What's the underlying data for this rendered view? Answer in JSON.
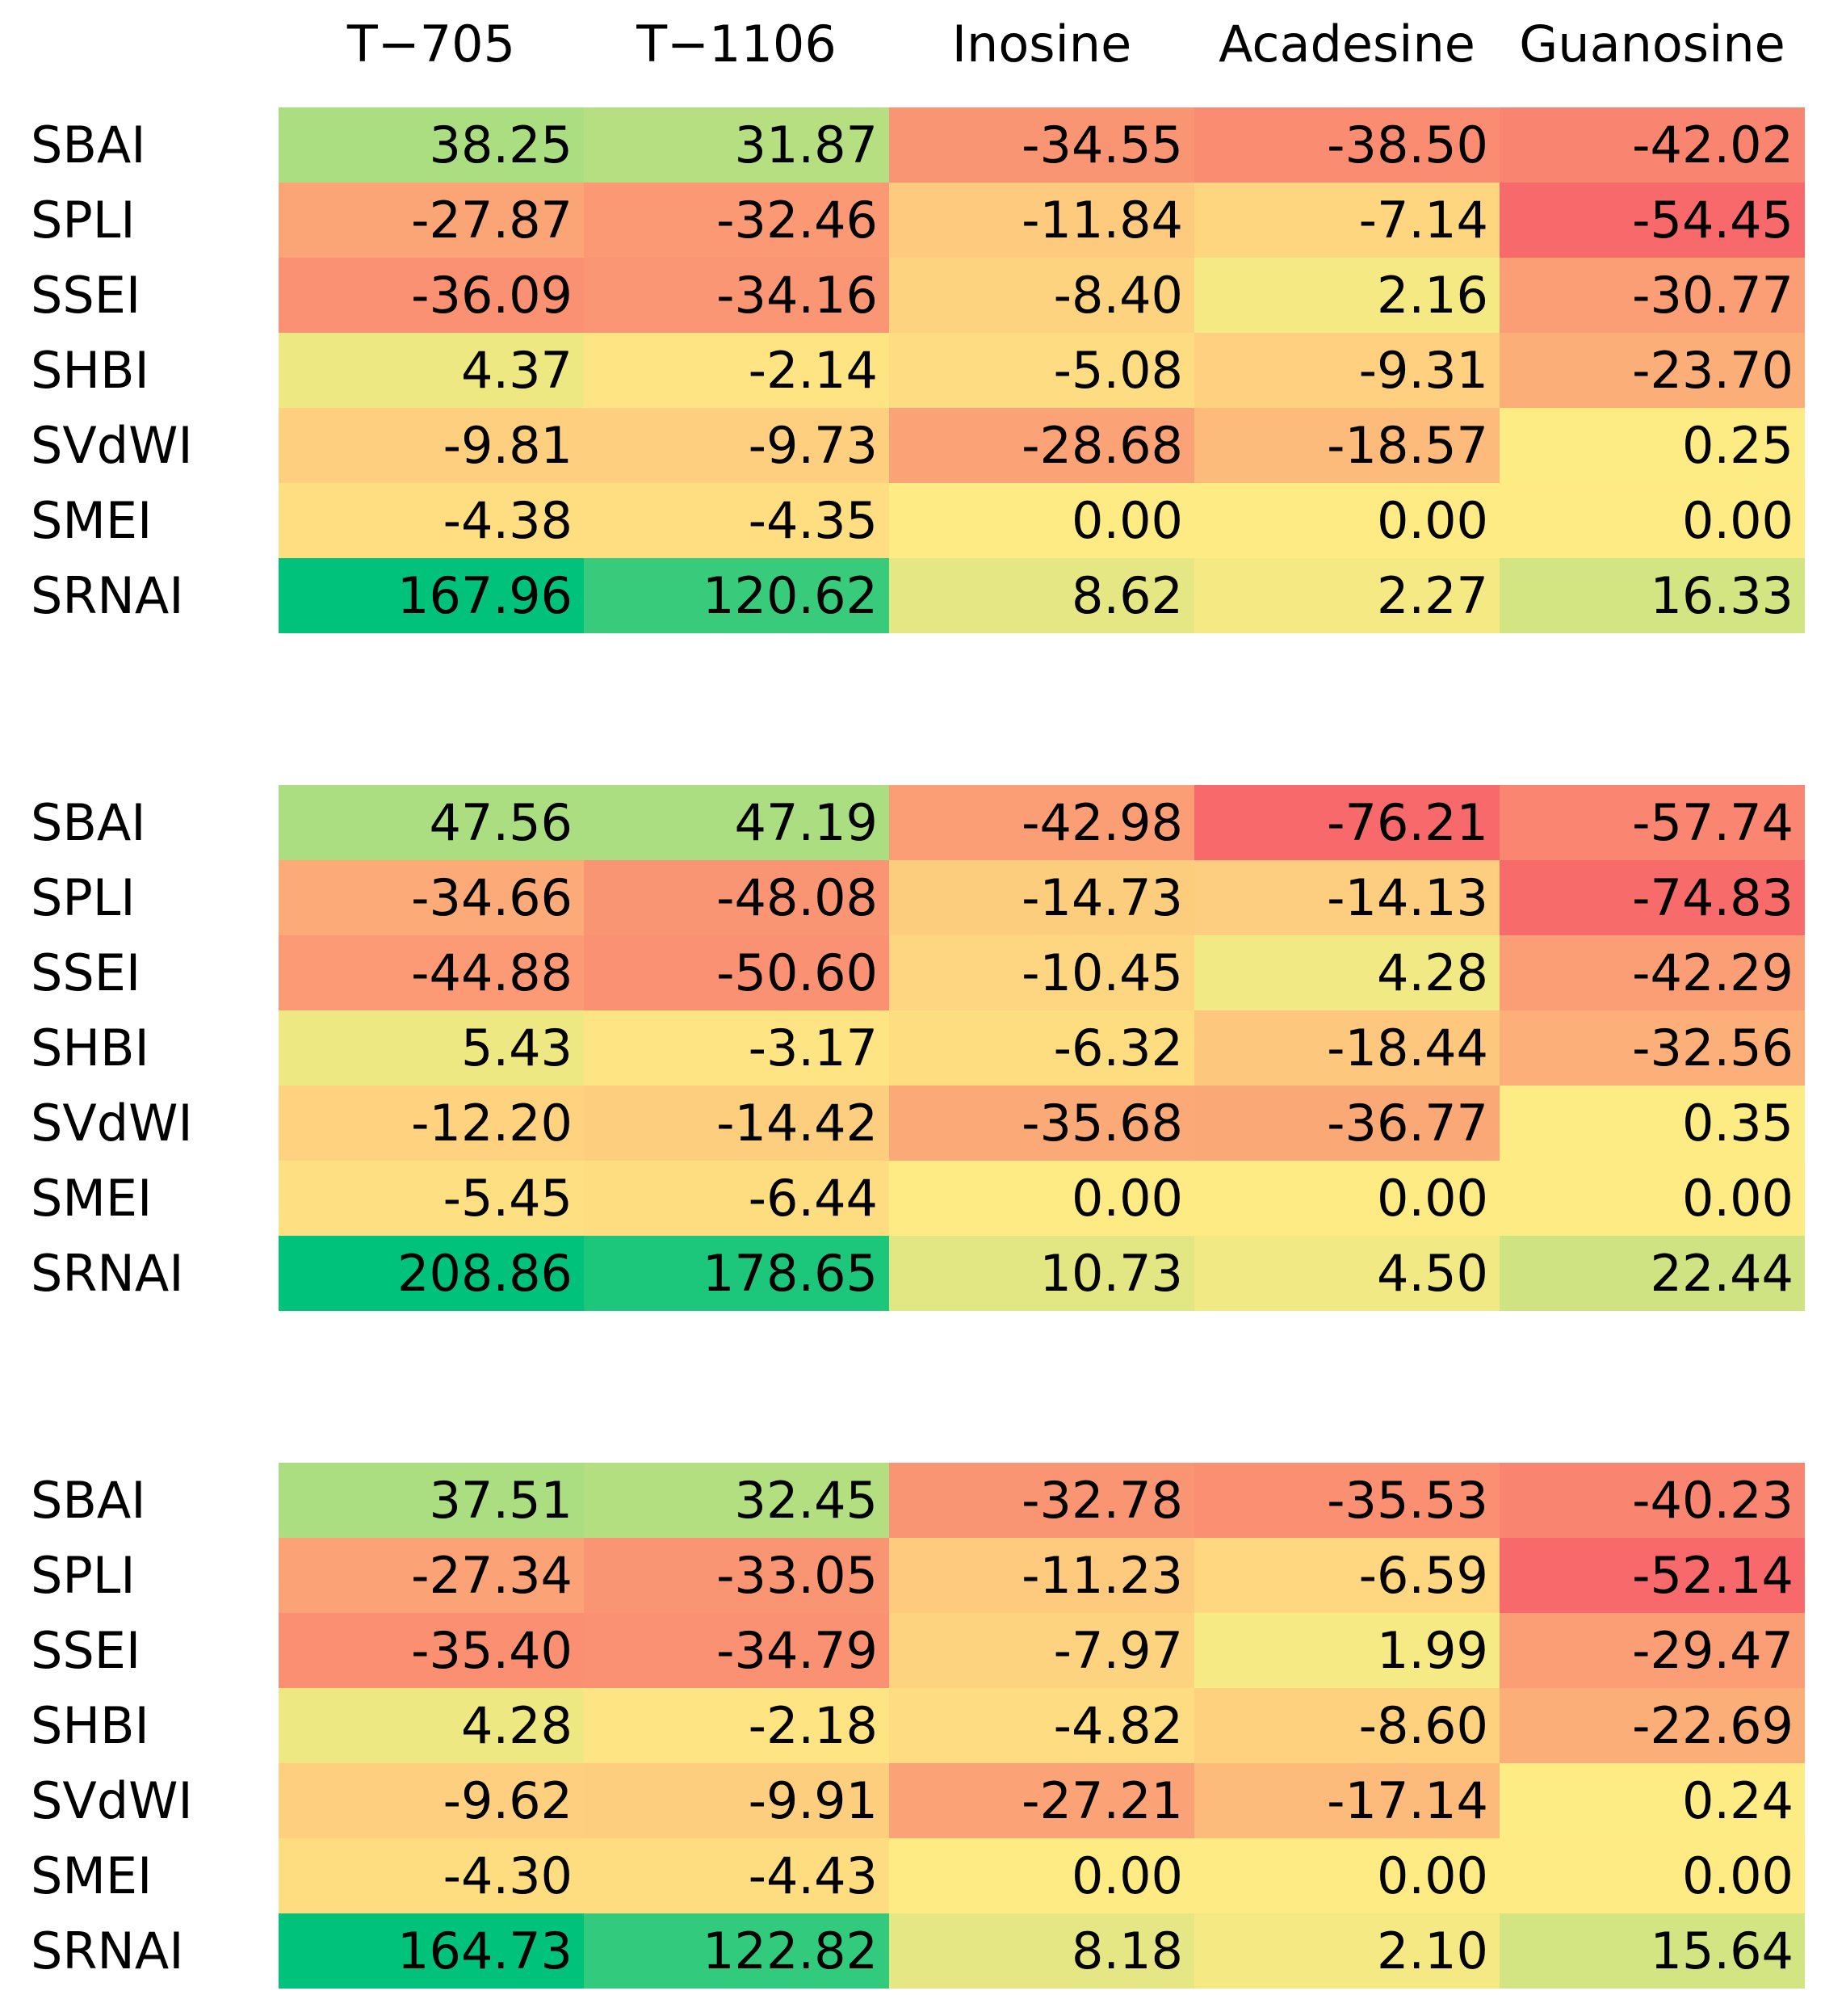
{
  "chart_data": {
    "type": "heatmap",
    "columns": [
      "T−705",
      "T−1106",
      "Inosine",
      "Acadesine",
      "Guanosine"
    ],
    "rows": [
      "SBAI",
      "SPLI",
      "SSEI",
      "SHBI",
      "SVdWI",
      "SMEI",
      "SRNAI"
    ],
    "panels": [
      {
        "values": [
          [
            "38.25",
            "31.87",
            "-34.55",
            "-38.50",
            "-42.02"
          ],
          [
            "-27.87",
            "-32.46",
            "-11.84",
            "-7.14",
            "-54.45"
          ],
          [
            "-36.09",
            "-34.16",
            "-8.40",
            "2.16",
            "-30.77"
          ],
          [
            "4.37",
            "-2.14",
            "-5.08",
            "-9.31",
            "-23.70"
          ],
          [
            "-9.81",
            "-9.73",
            "-28.68",
            "-18.57",
            "0.25"
          ],
          [
            "-4.38",
            "-4.35",
            "0.00",
            "0.00",
            "0.00"
          ],
          [
            "167.96",
            "120.62",
            "8.62",
            "2.27",
            "16.33"
          ]
        ]
      },
      {
        "values": [
          [
            "47.56",
            "47.19",
            "-42.98",
            "-76.21",
            "-57.74"
          ],
          [
            "-34.66",
            "-48.08",
            "-14.73",
            "-14.13",
            "-74.83"
          ],
          [
            "-44.88",
            "-50.60",
            "-10.45",
            "4.28",
            "-42.29"
          ],
          [
            "5.43",
            "-3.17",
            "-6.32",
            "-18.44",
            "-32.56"
          ],
          [
            "-12.20",
            "-14.42",
            "-35.68",
            "-36.77",
            "0.35"
          ],
          [
            "-5.45",
            "-6.44",
            "0.00",
            "0.00",
            "0.00"
          ],
          [
            "208.86",
            "178.65",
            "10.73",
            "4.50",
            "22.44"
          ]
        ]
      },
      {
        "values": [
          [
            "37.51",
            "32.45",
            "-32.78",
            "-35.53",
            "-40.23"
          ],
          [
            "-27.34",
            "-33.05",
            "-11.23",
            "-6.59",
            "-52.14"
          ],
          [
            "-35.40",
            "-34.79",
            "-7.97",
            "1.99",
            "-29.47"
          ],
          [
            "4.28",
            "-2.18",
            "-4.82",
            "-8.60",
            "-22.69"
          ],
          [
            "-9.62",
            "-9.91",
            "-27.21",
            "-17.14",
            "0.24"
          ],
          [
            "-4.30",
            "-4.43",
            "0.00",
            "0.00",
            "0.00"
          ],
          [
            "164.73",
            "122.82",
            "8.18",
            "2.10",
            "15.64"
          ]
        ]
      }
    ],
    "color_scale": {
      "negative": "#f8696b",
      "zero": "#ffeb84",
      "positive": "#00c27a",
      "positive_light": "#d6e07e"
    }
  }
}
